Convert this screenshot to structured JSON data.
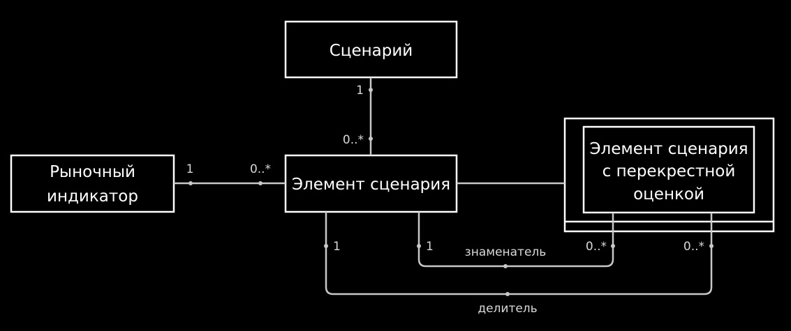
{
  "nodes": {
    "scenario": {
      "label": "Сценарий"
    },
    "market_indicator": {
      "line1": "Рыночный",
      "line2": "индикатор"
    },
    "scenario_element": {
      "label": "Элемент сценария"
    },
    "cross_element": {
      "line1": "Элемент сценария",
      "line2": "с перекрестной",
      "line3": "оценкой"
    }
  },
  "edges": {
    "scenario_to_element": {
      "top_mult": "1",
      "bottom_mult": "0..*"
    },
    "indicator_to_element": {
      "left_mult": "1",
      "right_mult": "0..*"
    },
    "denominator": {
      "label": "знаменатель",
      "left_mult": "1",
      "right_mult": "0..*"
    },
    "divisor": {
      "label": "делитель",
      "left_mult": "1",
      "right_mult": "0..*"
    }
  },
  "colors": {
    "background": "#000000",
    "stroke": "#ffffff",
    "connector": "#c8c8c8"
  }
}
